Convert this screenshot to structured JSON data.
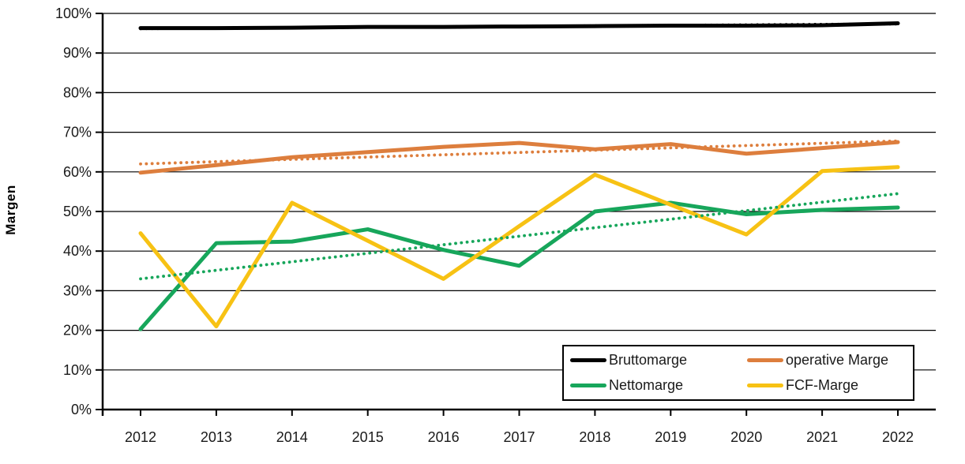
{
  "chart_data": {
    "type": "line",
    "title": "",
    "xlabel": "",
    "ylabel": "Margen",
    "ylim": [
      0,
      100
    ],
    "ytick_step": 10,
    "ytick_labels": [
      "0%",
      "10%",
      "20%",
      "30%",
      "40%",
      "50%",
      "60%",
      "70%",
      "80%",
      "90%",
      "100%"
    ],
    "categories": [
      "2012",
      "2013",
      "2014",
      "2015",
      "2016",
      "2017",
      "2018",
      "2019",
      "2020",
      "2021",
      "2022"
    ],
    "grid": "horizontal",
    "legend_position": "inside-bottom-right",
    "series": [
      {
        "name": "Bruttomarge",
        "color": "#000000",
        "values": [
          96.3,
          96.3,
          96.4,
          96.6,
          96.6,
          96.7,
          96.8,
          96.9,
          96.9,
          97.0,
          97.5
        ],
        "trend_dotted": [
          96.15,
          97.35
        ]
      },
      {
        "name": "operative Marge",
        "color": "#DD7E3D",
        "values": [
          59.8,
          61.7,
          63.7,
          65.0,
          66.3,
          67.3,
          65.7,
          67.0,
          64.6,
          66.0,
          67.5
        ],
        "trend_dotted": [
          62.0,
          67.8
        ]
      },
      {
        "name": "Nettomarge",
        "color": "#17A65B",
        "values": [
          20.3,
          42.0,
          42.4,
          45.5,
          40.3,
          36.3,
          50.0,
          52.2,
          49.3,
          50.4,
          51.0
        ],
        "trend_dotted": [
          33.0,
          54.5
        ]
      },
      {
        "name": "FCF-Marge",
        "color": "#F7C214",
        "values": [
          44.5,
          21.0,
          52.2,
          42.6,
          33.0,
          46.3,
          59.3,
          51.7,
          44.2,
          60.2,
          61.2
        ],
        "trend_dotted": null
      }
    ]
  }
}
